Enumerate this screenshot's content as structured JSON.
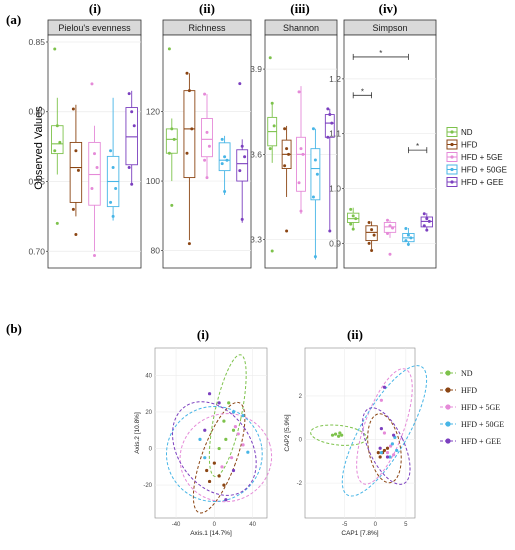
{
  "figure": {
    "panel_a_label": "(a)",
    "panel_b_label": "(b)",
    "numerals_a": [
      "(i)",
      "(ii)",
      "(iii)",
      "(iv)"
    ],
    "numerals_b": [
      "(i)",
      "(ii)"
    ],
    "y_axis_label_a": "Observed Values"
  },
  "colors": {
    "ND": "#7dc24b",
    "HFD": "#8b4513",
    "HFD + 5GE": "#e58ad8",
    "HFD + 50GE": "#47b5e6",
    "HFD + GEE": "#7b3fbf"
  },
  "legend_a": [
    "ND",
    "HFD",
    "HFD + 5GE",
    "HFD + 50GE",
    "HFD + GEE"
  ],
  "legend_b": [
    "ND",
    "HFD",
    "HFD + 5GE",
    "HFD + 50GE",
    "HFD + GEE"
  ],
  "chart_data": [
    {
      "type": "box",
      "title": "Pielou's evenness",
      "ylabel": "Observed Values",
      "yticks": [
        "0.85",
        "0.80",
        "0.75",
        "0.70"
      ],
      "ytick_values": [
        0.85,
        0.8,
        0.75,
        0.7
      ],
      "ylim": [
        0.688,
        0.855
      ],
      "groups": [
        "ND",
        "HFD",
        "HFD + 5GE",
        "HFD + 50GE",
        "HFD + GEE"
      ],
      "boxes": [
        {
          "min": 0.755,
          "q1": 0.77,
          "median": 0.777,
          "q3": 0.79,
          "max": 0.81,
          "points": [
            0.845,
            0.79,
            0.778,
            0.772,
            0.72
          ]
        },
        {
          "min": 0.725,
          "q1": 0.735,
          "median": 0.76,
          "q3": 0.778,
          "max": 0.805,
          "points": [
            0.802,
            0.772,
            0.758,
            0.73,
            0.712
          ]
        },
        {
          "min": 0.7,
          "q1": 0.733,
          "median": 0.755,
          "q3": 0.778,
          "max": 0.79,
          "points": [
            0.82,
            0.77,
            0.76,
            0.745,
            0.697
          ]
        },
        {
          "min": 0.722,
          "q1": 0.732,
          "median": 0.75,
          "q3": 0.768,
          "max": 0.81,
          "points": [
            0.772,
            0.76,
            0.745,
            0.735,
            0.725
          ]
        },
        {
          "min": 0.748,
          "q1": 0.762,
          "median": 0.782,
          "q3": 0.803,
          "max": 0.815,
          "points": [
            0.813,
            0.8,
            0.79,
            0.76,
            0.748
          ]
        }
      ]
    },
    {
      "type": "box",
      "title": "Richness",
      "yticks": [
        "120",
        "100",
        "80"
      ],
      "ytick_values": [
        120,
        100,
        80
      ],
      "ylim": [
        75,
        142
      ],
      "groups": [
        "ND",
        "HFD",
        "HFD + 5GE",
        "HFD + 50GE",
        "HFD + GEE"
      ],
      "boxes": [
        {
          "min": 100,
          "q1": 108,
          "median": 112,
          "q3": 115,
          "max": 118,
          "points": [
            138,
            115,
            112,
            108,
            93
          ]
        },
        {
          "min": 83,
          "q1": 101,
          "median": 115,
          "q3": 126,
          "max": 131,
          "points": [
            131,
            126,
            115,
            108,
            82
          ]
        },
        {
          "min": 101,
          "q1": 107,
          "median": 112,
          "q3": 118,
          "max": 125,
          "points": [
            125,
            114,
            110,
            106,
            101
          ]
        },
        {
          "min": 96,
          "q1": 103,
          "median": 106,
          "q3": 111,
          "max": 113,
          "points": [
            112,
            107,
            106,
            105,
            97
          ]
        },
        {
          "min": 88,
          "q1": 100,
          "median": 105,
          "q3": 109,
          "max": 112,
          "points": [
            128,
            110,
            107,
            103,
            89
          ]
        }
      ]
    },
    {
      "type": "box",
      "title": "Shannon",
      "yticks": [
        "3.9",
        "3.6",
        "3.3"
      ],
      "ytick_values": [
        3.9,
        3.6,
        3.3
      ],
      "ylim": [
        3.2,
        4.02
      ],
      "groups": [
        "ND",
        "HFD",
        "HFD + 5GE",
        "HFD + 50GE",
        "HFD + GEE"
      ],
      "boxes": [
        {
          "min": 3.57,
          "q1": 3.63,
          "median": 3.68,
          "q3": 3.73,
          "max": 3.78,
          "points": [
            3.94,
            3.78,
            3.7,
            3.62,
            3.26
          ]
        },
        {
          "min": 3.45,
          "q1": 3.55,
          "median": 3.6,
          "q3": 3.65,
          "max": 3.7,
          "points": [
            3.69,
            3.62,
            3.6,
            3.56,
            3.33
          ]
        },
        {
          "min": 3.39,
          "q1": 3.47,
          "median": 3.6,
          "q3": 3.66,
          "max": 3.84,
          "points": [
            3.82,
            3.62,
            3.6,
            3.5,
            3.4
          ]
        },
        {
          "min": 3.23,
          "q1": 3.44,
          "median": 3.55,
          "q3": 3.62,
          "max": 3.69,
          "points": [
            3.69,
            3.58,
            3.53,
            3.45,
            3.24
          ]
        },
        {
          "min": 3.33,
          "q1": 3.66,
          "median": 3.71,
          "q3": 3.74,
          "max": 3.76,
          "points": [
            3.76,
            3.74,
            3.71,
            3.66,
            3.33
          ]
        }
      ]
    },
    {
      "type": "box",
      "title": "Simpson",
      "yticks": [
        "1.2",
        "1.1",
        "1.0",
        "0.9"
      ],
      "ytick_values": [
        1.2,
        1.1,
        1.0,
        0.9
      ],
      "ylim": [
        0.855,
        1.28
      ],
      "groups": [
        "ND",
        "HFD",
        "HFD + 5GE",
        "HFD + 50GE",
        "HFD + GEE"
      ],
      "boxes": [
        {
          "min": 0.925,
          "q1": 0.938,
          "median": 0.945,
          "q3": 0.955,
          "max": 0.965,
          "points": [
            0.962,
            0.95,
            0.945,
            0.935,
            0.926
          ]
        },
        {
          "min": 0.885,
          "q1": 0.905,
          "median": 0.92,
          "q3": 0.932,
          "max": 0.94,
          "points": [
            0.938,
            0.925,
            0.915,
            0.9,
            0.887
          ]
        },
        {
          "min": 0.91,
          "q1": 0.92,
          "median": 0.93,
          "q3": 0.938,
          "max": 0.942,
          "points": [
            0.942,
            0.932,
            0.928,
            0.918,
            0.88
          ]
        },
        {
          "min": 0.895,
          "q1": 0.903,
          "median": 0.91,
          "q3": 0.918,
          "max": 0.928,
          "points": [
            0.927,
            0.915,
            0.91,
            0.905,
            0.898
          ]
        },
        {
          "min": 0.922,
          "q1": 0.93,
          "median": 0.94,
          "q3": 0.948,
          "max": 0.955,
          "points": [
            0.954,
            0.945,
            0.94,
            0.932,
            0.924
          ]
        }
      ],
      "significance": [
        {
          "from": 0,
          "to": 3,
          "y": 1.24,
          "label": "*"
        },
        {
          "from": 0,
          "to": 1,
          "y": 1.17,
          "label": "*"
        },
        {
          "from": 3,
          "to": 4,
          "y": 1.07,
          "label": "*"
        }
      ]
    },
    {
      "type": "scatter",
      "xlabel": "Axis.1  [14.7%]",
      "ylabel": "Axis.2  [10.8%]",
      "xticks": [
        "-40",
        "0",
        "40"
      ],
      "xtick_values": [
        -40,
        0,
        40
      ],
      "yticks": [
        "40",
        "20",
        "0",
        "-20"
      ],
      "ytick_values": [
        40,
        20,
        0,
        -20
      ],
      "xlim": [
        -62,
        55
      ],
      "ylim": [
        -38,
        55
      ],
      "groups": [
        "ND",
        "HFD",
        "HFD + 5GE",
        "HFD + 50GE",
        "HFD + GEE"
      ],
      "points": [
        [
          [
            15,
            25
          ],
          [
            10,
            15
          ],
          [
            20,
            10
          ],
          [
            12,
            5
          ],
          [
            5,
            0
          ]
        ],
        [
          [
            0,
            -8
          ],
          [
            -8,
            -12
          ],
          [
            5,
            -15
          ],
          [
            -5,
            -18
          ],
          [
            10,
            -20
          ]
        ],
        [
          [
            25,
            8
          ],
          [
            30,
            2
          ],
          [
            18,
            -5
          ],
          [
            22,
            12
          ],
          [
            8,
            -10
          ]
        ],
        [
          [
            -15,
            5
          ],
          [
            20,
            20
          ],
          [
            30,
            18
          ],
          [
            -10,
            -5
          ],
          [
            35,
            -2
          ]
        ],
        [
          [
            -5,
            30
          ],
          [
            5,
            25
          ],
          [
            -10,
            10
          ],
          [
            20,
            -12
          ],
          [
            12,
            -28
          ]
        ]
      ],
      "ellipses": [
        {
          "cx": 14,
          "cy": 18,
          "rx": 14,
          "ry": 34,
          "rot": 12
        },
        {
          "cx": 5,
          "cy": -5,
          "rx": 18,
          "ry": 32,
          "rot": 20
        },
        {
          "cx": 12,
          "cy": -5,
          "rx": 48,
          "ry": 24,
          "rot": -18
        },
        {
          "cx": 0,
          "cy": -3,
          "rx": 50,
          "ry": 26,
          "rot": -8
        },
        {
          "cx": 0,
          "cy": 0,
          "rx": 38,
          "ry": 28,
          "rot": -35
        }
      ]
    },
    {
      "type": "scatter",
      "xlabel": "CAP1  [7.8%]",
      "ylabel": "CAP2  [5.9%]",
      "xticks": [
        "-5",
        "0",
        "5"
      ],
      "xtick_values": [
        -5,
        0,
        5
      ],
      "yticks": [
        "2",
        "0",
        "-2"
      ],
      "ytick_values": [
        2,
        0,
        -2
      ],
      "xlim": [
        -11.5,
        6.5
      ],
      "ylim": [
        -3.6,
        4.2
      ],
      "groups": [
        "ND",
        "HFD",
        "HFD + 5GE",
        "HFD + 50GE",
        "HFD + GEE"
      ],
      "points": [
        [
          [
            -7,
            0.2
          ],
          [
            -6.5,
            0.25
          ],
          [
            -5.8,
            0.3
          ],
          [
            -5.5,
            0.2
          ],
          [
            -6,
            0.15
          ]
        ],
        [
          [
            0.5,
            -0.6
          ],
          [
            1.5,
            -0.5
          ],
          [
            0.8,
            -0.8
          ],
          [
            2,
            -0.4
          ],
          [
            1.2,
            -0.6
          ]
        ],
        [
          [
            1,
            1.8
          ],
          [
            2,
            -0.6
          ],
          [
            3,
            -0.7
          ],
          [
            1.5,
            0.3
          ],
          [
            2.5,
            -0.3
          ]
        ],
        [
          [
            2.8,
            -0.2
          ],
          [
            3.2,
            0.1
          ],
          [
            2.4,
            -0.8
          ],
          [
            3.5,
            -0.5
          ],
          [
            1,
            -0.6
          ]
        ],
        [
          [
            1.5,
            2.4
          ],
          [
            1,
            0.5
          ],
          [
            2,
            -0.8
          ],
          [
            0.8,
            -0.4
          ],
          [
            3,
            0.2
          ]
        ]
      ],
      "ellipses": [
        {
          "cx": -6,
          "cy": 0.2,
          "rx": 4.6,
          "ry": 0.45,
          "rot": 6
        },
        {
          "cx": 1.5,
          "cy": -0.4,
          "rx": 2.6,
          "ry": 1.6,
          "rot": -10
        },
        {
          "cx": 1.5,
          "cy": 0.6,
          "rx": 3.2,
          "ry": 2.8,
          "rot": 20
        },
        {
          "cx": 1.5,
          "cy": 0.4,
          "rx": 3.8,
          "ry": 3.4,
          "rot": 30
        },
        {
          "cx": 1.8,
          "cy": -0.3,
          "rx": 2.9,
          "ry": 1.9,
          "rot": -25
        }
      ]
    }
  ]
}
